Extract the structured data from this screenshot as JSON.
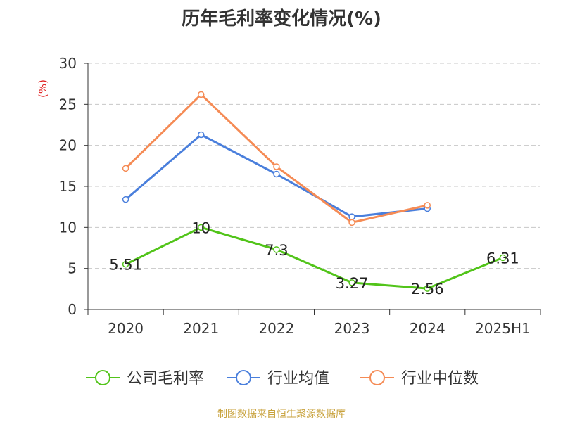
{
  "chart_data": {
    "type": "line",
    "title": "历年毛利率变化情况(%)",
    "ylabel": "(%)",
    "xlabel": "",
    "categories": [
      "2020",
      "2021",
      "2022",
      "2023",
      "2024",
      "2025H1"
    ],
    "ylim": [
      0,
      30
    ],
    "yticks": [
      0,
      5,
      10,
      15,
      20,
      25,
      30
    ],
    "grid": true,
    "legend_position": "bottom",
    "series": [
      {
        "name": "公司毛利率",
        "color": "#52c41a",
        "values": [
          5.51,
          10,
          7.3,
          3.27,
          2.56,
          6.31
        ],
        "labels": [
          "5.51",
          "10",
          "7.3",
          "3.27",
          "2.56",
          "6.31"
        ]
      },
      {
        "name": "行业均值",
        "color": "#4a7fdc",
        "values": [
          13.4,
          21.3,
          16.5,
          11.3,
          12.3,
          null
        ]
      },
      {
        "name": "行业中位数",
        "color": "#f58b55",
        "values": [
          17.2,
          26.2,
          17.4,
          10.6,
          12.7,
          null
        ]
      }
    ]
  },
  "source_text": "制图数据来自恒生聚源数据库"
}
